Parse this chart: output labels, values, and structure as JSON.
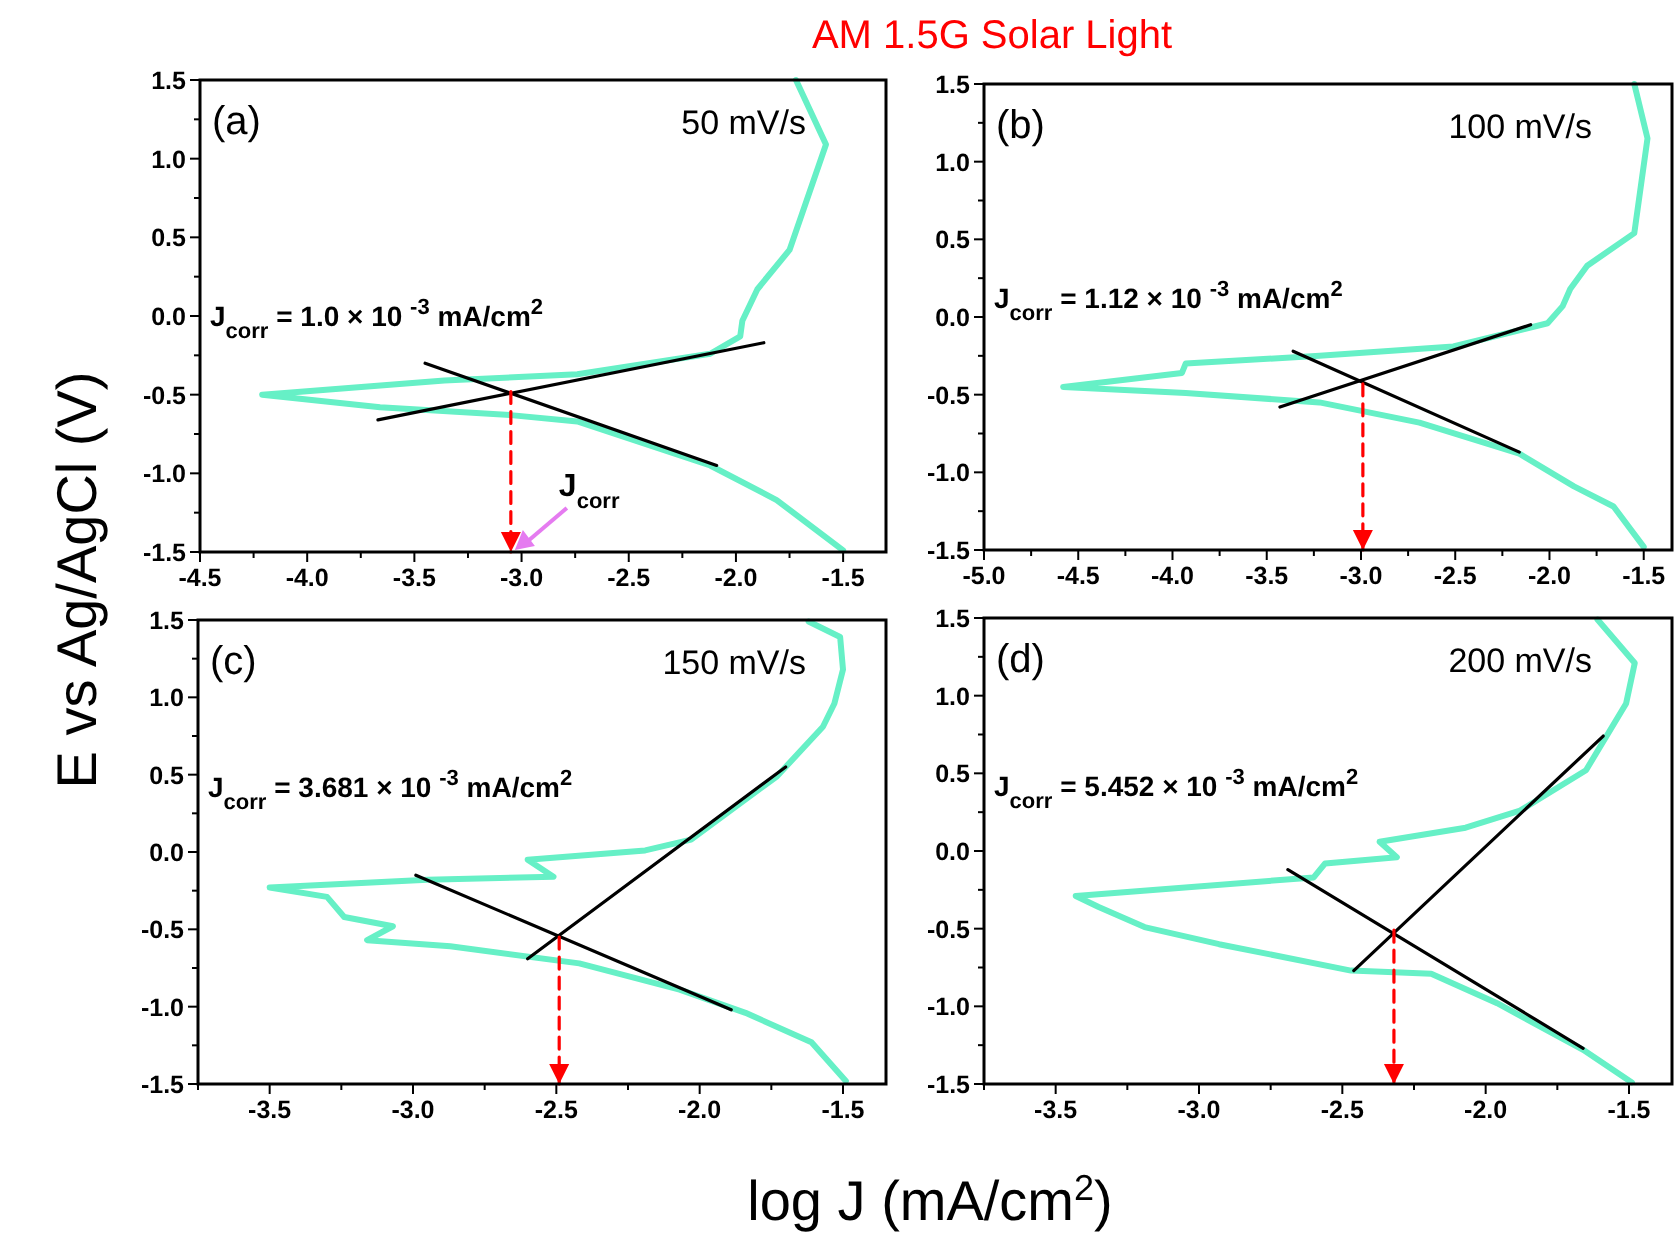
{
  "chart_data": [
    {
      "type": "line",
      "title": "AM 1.5G Solar Light",
      "ylabel": "E vs Ag/AgCl (V)",
      "xlim": [
        -4.5,
        -1.3
      ],
      "ylim": [
        -1.5,
        1.5
      ],
      "xticks": [
        {
          "value": -4.5,
          "label": "-4.5"
        },
        {
          "value": -4.25,
          "label": null
        },
        {
          "value": -4,
          "label": "-4.0"
        },
        {
          "value": -3.75,
          "label": null
        },
        {
          "value": -3.5,
          "label": "-3.5"
        },
        {
          "value": -3.25,
          "label": null
        },
        {
          "value": -3,
          "label": "-3.0"
        },
        {
          "value": -2.75,
          "label": null
        },
        {
          "value": -2.5,
          "label": "-2.5"
        },
        {
          "value": -2.25,
          "label": null
        },
        {
          "value": -2,
          "label": "-2.0"
        },
        {
          "value": -1.75,
          "label": null
        },
        {
          "value": -1.5,
          "label": "-1.5"
        }
      ],
      "yticks": [
        {
          "value": -1.5,
          "label": "-1.5"
        },
        {
          "value": -1.25,
          "label": null
        },
        {
          "value": -1,
          "label": "-1.0"
        },
        {
          "value": -0.75,
          "label": null
        },
        {
          "value": -0.5,
          "label": "-0.5"
        },
        {
          "value": -0.25,
          "label": null
        },
        {
          "value": 0,
          "label": "0.0"
        },
        {
          "value": 0.25,
          "label": null
        },
        {
          "value": 0.5,
          "label": "0.5"
        },
        {
          "value": 0.75,
          "label": null
        },
        {
          "value": 1,
          "label": "1.0"
        },
        {
          "value": 1.25,
          "label": null
        },
        {
          "value": 1.5,
          "label": "1.5"
        }
      ],
      "series": [
        {
          "type": "line",
          "color": "#66f0c6",
          "x": [
            -1.72,
            -1.58,
            -1.75,
            -1.9,
            -1.97,
            -1.98,
            -2.12,
            -2.74,
            -3.36,
            -4.21,
            -3.66,
            -3.05,
            -2.74,
            -2.12,
            -1.81,
            -1.5
          ],
          "values": [
            1.5,
            1.09,
            0.42,
            0.17,
            -0.03,
            -0.13,
            -0.24,
            -0.37,
            -0.41,
            -0.5,
            -0.58,
            -0.63,
            -0.67,
            -0.95,
            -1.17,
            -1.49
          ]
        },
        {
          "type": "line",
          "color": "#000000",
          "x": [
            -3.67,
            -1.87
          ],
          "values": [
            -0.66,
            -0.17
          ]
        },
        {
          "type": "line",
          "color": "#000000",
          "x": [
            -3.45,
            -2.09
          ],
          "values": [
            -0.3,
            -0.95
          ]
        },
        {
          "type": "line",
          "color": "#ff0000",
          "line_style": "dashed",
          "x": [
            -3.05,
            -3.05
          ],
          "values": [
            -0.48,
            -1.5
          ]
        }
      ],
      "annotations": [
        "(a)",
        "50 mV/s",
        "J$_{corr}$ = 1.0 × 10 $^{-3}$ mA/cm$^{2}$",
        {
          "text": "J$_{corr}$",
          "x": -3.05,
          "y": -1.5
        }
      ]
    },
    {
      "type": "line",
      "xlim": [
        -5,
        -1.35
      ],
      "ylim": [
        -1.5,
        1.5
      ],
      "xticks": [
        {
          "value": -5,
          "label": "-5.0"
        },
        {
          "value": -4.75,
          "label": null
        },
        {
          "value": -4.5,
          "label": "-4.5"
        },
        {
          "value": -4.25,
          "label": null
        },
        {
          "value": -4,
          "label": "-4.0"
        },
        {
          "value": -3.75,
          "label": null
        },
        {
          "value": -3.5,
          "label": "-3.5"
        },
        {
          "value": -3.25,
          "label": null
        },
        {
          "value": -3,
          "label": "-3.0"
        },
        {
          "value": -2.75,
          "label": null
        },
        {
          "value": -2.5,
          "label": "-2.5"
        },
        {
          "value": -2.25,
          "label": null
        },
        {
          "value": -2,
          "label": "-2.0"
        },
        {
          "value": -1.75,
          "label": null
        },
        {
          "value": -1.5,
          "label": "-1.5"
        }
      ],
      "yticks": [
        {
          "value": -1.5,
          "label": "-1.5"
        },
        {
          "value": -1.25,
          "label": null
        },
        {
          "value": -1,
          "label": "-1.0"
        },
        {
          "value": -0.75,
          "label": null
        },
        {
          "value": -0.5,
          "label": "-0.5"
        },
        {
          "value": -0.25,
          "label": null
        },
        {
          "value": 0,
          "label": "0.0"
        },
        {
          "value": 0.25,
          "label": null
        },
        {
          "value": 0.5,
          "label": "0.5"
        },
        {
          "value": 0.75,
          "label": null
        },
        {
          "value": 1,
          "label": "1.0"
        },
        {
          "value": 1.25,
          "label": null
        },
        {
          "value": 1.5,
          "label": "1.5"
        }
      ],
      "series": [
        {
          "type": "line",
          "color": "#66f0c6",
          "x": [
            -1.55,
            -1.48,
            -1.55,
            -1.8,
            -1.89,
            -1.93,
            -2.01,
            -2.51,
            -3.22,
            -3.93,
            -3.95,
            -4.58,
            -3.93,
            -3.22,
            -2.69,
            -2.16,
            -1.87,
            -1.66,
            -1.5
          ],
          "values": [
            1.5,
            1.15,
            0.54,
            0.33,
            0.18,
            0.07,
            -0.04,
            -0.19,
            -0.25,
            -0.3,
            -0.36,
            -0.45,
            -0.49,
            -0.55,
            -0.68,
            -0.88,
            -1.09,
            -1.22,
            -1.48
          ]
        },
        {
          "type": "line",
          "color": "#000000",
          "x": [
            -3.43,
            -2.1
          ],
          "values": [
            -0.58,
            -0.05
          ]
        },
        {
          "type": "line",
          "color": "#000000",
          "x": [
            -3.36,
            -2.16
          ],
          "values": [
            -0.22,
            -0.87
          ]
        },
        {
          "type": "line",
          "color": "#ff0000",
          "line_style": "dashed",
          "x": [
            -2.99,
            -2.99
          ],
          "values": [
            -0.43,
            -1.5
          ]
        }
      ],
      "annotations": [
        "(b)",
        "100 mV/s",
        "J$_{corr}$ = 1.12 × 10 $^{-3}$ mA/cm$^{2}$"
      ]
    },
    {
      "type": "line",
      "xlabel": "log J (mA/cm$^{2}$)",
      "xlim": [
        -3.75,
        -1.35
      ],
      "ylim": [
        -1.5,
        1.5
      ],
      "xticks": [
        {
          "value": -3.75,
          "label": null
        },
        {
          "value": -3.5,
          "label": "-3.5"
        },
        {
          "value": -3.25,
          "label": null
        },
        {
          "value": -3,
          "label": "-3.0"
        },
        {
          "value": -2.75,
          "label": null
        },
        {
          "value": -2.5,
          "label": "-2.5"
        },
        {
          "value": -2.25,
          "label": null
        },
        {
          "value": -2,
          "label": "-2.0"
        },
        {
          "value": -1.75,
          "label": null
        },
        {
          "value": -1.5,
          "label": "-1.5"
        }
      ],
      "yticks": [
        {
          "value": -1.5,
          "label": "-1.5"
        },
        {
          "value": -1.25,
          "label": null
        },
        {
          "value": -1,
          "label": "-1.0"
        },
        {
          "value": -0.75,
          "label": null
        },
        {
          "value": -0.5,
          "label": "-0.5"
        },
        {
          "value": -0.25,
          "label": null
        },
        {
          "value": 0,
          "label": "0.0"
        },
        {
          "value": 0.25,
          "label": null
        },
        {
          "value": 0.5,
          "label": "0.5"
        },
        {
          "value": 0.75,
          "label": null
        },
        {
          "value": 1,
          "label": "1.0"
        },
        {
          "value": 1.25,
          "label": null
        },
        {
          "value": 1.5,
          "label": "1.5"
        }
      ],
      "series": [
        {
          "type": "line",
          "color": "#66f0c6",
          "x": [
            -1.62,
            -1.51,
            -1.5,
            -1.53,
            -1.57,
            -1.73,
            -2.03,
            -2.19,
            -2.6,
            -2.51,
            -2.95,
            -3.5,
            -3.3,
            -3.24,
            -3.07,
            -3.16,
            -2.87,
            -2.42,
            -2.07,
            -1.84,
            -1.61,
            -1.49
          ],
          "values": [
            1.49,
            1.39,
            1.18,
            0.96,
            0.81,
            0.49,
            0.08,
            0.01,
            -0.05,
            -0.16,
            -0.18,
            -0.23,
            -0.29,
            -0.42,
            -0.48,
            -0.57,
            -0.61,
            -0.72,
            -0.89,
            -1.04,
            -1.23,
            -1.48
          ]
        },
        {
          "type": "line",
          "color": "#000000",
          "x": [
            -2.6,
            -1.7
          ],
          "values": [
            -0.69,
            0.55
          ]
        },
        {
          "type": "line",
          "color": "#000000",
          "x": [
            -2.99,
            -1.89
          ],
          "values": [
            -0.15,
            -1.02
          ]
        },
        {
          "type": "line",
          "color": "#ff0000",
          "line_style": "dashed",
          "x": [
            -2.49,
            -2.49
          ],
          "values": [
            -0.55,
            -1.5
          ]
        }
      ],
      "annotations": [
        "(c)",
        "150 mV/s",
        "J$_{corr}$ = 3.681 × 10 $^{-3}$ mA/cm$^{2}$"
      ]
    },
    {
      "type": "line",
      "xlim": [
        -3.75,
        -1.35
      ],
      "ylim": [
        -1.5,
        1.5
      ],
      "xticks": [
        {
          "value": -3.75,
          "label": null
        },
        {
          "value": -3.5,
          "label": "-3.5"
        },
        {
          "value": -3.25,
          "label": null
        },
        {
          "value": -3,
          "label": "-3.0"
        },
        {
          "value": -2.75,
          "label": null
        },
        {
          "value": -2.5,
          "label": "-2.5"
        },
        {
          "value": -2.25,
          "label": null
        },
        {
          "value": -2,
          "label": "-2.0"
        },
        {
          "value": -1.75,
          "label": null
        },
        {
          "value": -1.5,
          "label": "-1.5"
        }
      ],
      "yticks": [
        {
          "value": -1.5,
          "label": "-1.5"
        },
        {
          "value": -1.25,
          "label": null
        },
        {
          "value": -1,
          "label": "-1.0"
        },
        {
          "value": -0.75,
          "label": null
        },
        {
          "value": -0.5,
          "label": "-0.5"
        },
        {
          "value": -0.25,
          "label": null
        },
        {
          "value": 0,
          "label": "0.0"
        },
        {
          "value": 0.25,
          "label": null
        },
        {
          "value": 0.5,
          "label": "0.5"
        },
        {
          "value": 0.75,
          "label": null
        },
        {
          "value": 1,
          "label": "1.0"
        },
        {
          "value": 1.25,
          "label": null
        },
        {
          "value": 1.5,
          "label": "1.5"
        }
      ],
      "series": [
        {
          "type": "line",
          "color": "#66f0c6",
          "x": [
            -1.61,
            -1.48,
            -1.51,
            -1.65,
            -1.88,
            -2.07,
            -2.37,
            -2.31,
            -2.56,
            -2.6,
            -3.43,
            -3.35,
            -3.19,
            -2.93,
            -2.47,
            -2.19,
            -1.96,
            -1.66,
            -1.49
          ],
          "values": [
            1.49,
            1.21,
            0.95,
            0.52,
            0.26,
            0.15,
            0.06,
            -0.04,
            -0.08,
            -0.17,
            -0.29,
            -0.36,
            -0.49,
            -0.6,
            -0.77,
            -0.79,
            -0.98,
            -1.28,
            -1.49
          ]
        },
        {
          "type": "line",
          "color": "#000000",
          "x": [
            -2.46,
            -1.59
          ],
          "values": [
            -0.77,
            0.74
          ]
        },
        {
          "type": "line",
          "color": "#000000",
          "x": [
            -2.69,
            -1.66
          ],
          "values": [
            -0.12,
            -1.27
          ]
        },
        {
          "type": "line",
          "color": "#ff0000",
          "line_style": "dashed",
          "x": [
            -2.32,
            -2.32
          ],
          "values": [
            -0.51,
            -1.5
          ]
        }
      ],
      "annotations": [
        "(d)",
        "200 mV/s",
        "J$_{corr}$ = 5.452 × 10 $^{-3}$ mA/cm$^{2}$"
      ]
    }
  ]
}
